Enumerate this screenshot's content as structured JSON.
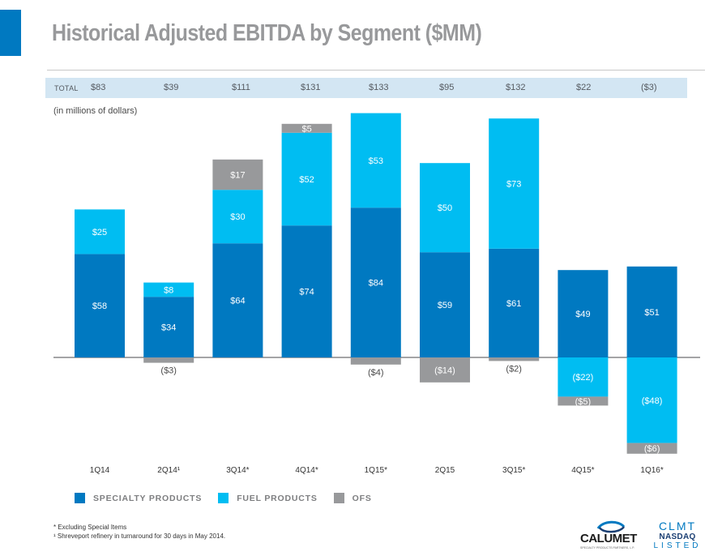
{
  "header": {
    "title": "Historical Adjusted EBITDA by Segment ($MM)"
  },
  "totals_row": {
    "label": "TOTAL",
    "values": [
      "$83",
      "$39",
      "$111",
      "$131",
      "$133",
      "$95",
      "$132",
      "$22",
      "($3)"
    ]
  },
  "units_note": "(in millions of dollars)",
  "colors": {
    "specialty": "#0079C1",
    "fuel": "#00BDF2",
    "ofs": "#98999B",
    "accent": "#0079C1",
    "total_band": "#D3E6F3"
  },
  "chart_data": {
    "type": "bar",
    "stacked": true,
    "title": "Historical Adjusted EBITDA by Segment ($MM)",
    "subtitle": "(in millions of dollars)",
    "xlabel": "",
    "ylabel": "",
    "categories": [
      "1Q14",
      "2Q14¹",
      "3Q14*",
      "4Q14*",
      "1Q15*",
      "2Q15",
      "3Q15*",
      "4Q15*",
      "1Q16*"
    ],
    "series": [
      {
        "name": "SPECIALTY PRODUCTS",
        "key": "specialty",
        "values": [
          58,
          34,
          64,
          74,
          84,
          59,
          61,
          49,
          51
        ],
        "labels": [
          "$58",
          "$34",
          "$64",
          "$74",
          "$84",
          "$59",
          "$61",
          "$49",
          "$51"
        ]
      },
      {
        "name": "FUEL PRODUCTS",
        "key": "fuel",
        "values": [
          25,
          8,
          30,
          52,
          53,
          50,
          73,
          -22,
          -48
        ],
        "labels": [
          "$25",
          "$8",
          "$30",
          "$52",
          "$53",
          "$50",
          "$73",
          "($22)",
          "($48)"
        ]
      },
      {
        "name": "OFS",
        "key": "ofs",
        "values": [
          0,
          -3,
          17,
          5,
          -4,
          -14,
          -2,
          -5,
          -6
        ],
        "labels": [
          "",
          "($3)",
          "$17",
          "$5",
          "($4)",
          "($14)",
          "($2)",
          "($5)",
          "($6)"
        ]
      }
    ],
    "totals": [
      83,
      39,
      111,
      131,
      133,
      95,
      132,
      22,
      -3
    ],
    "ylim": [
      -60,
      140
    ],
    "grid": false,
    "legend_position": "bottom-left"
  },
  "legend": [
    {
      "label": "SPECIALTY PRODUCTS",
      "key": "specialty"
    },
    {
      "label": "FUEL PRODUCTS",
      "key": "fuel"
    },
    {
      "label": "OFS",
      "key": "ofs"
    }
  ],
  "footnotes": [
    "* Excluding Special Items",
    "¹ Shreveport refinery in turnaround for 30 days in May 2014."
  ],
  "logos": {
    "company": "CALUMET",
    "company_sub": "SPECIALTY PRODUCTS PARTNERS, L.P.",
    "ticker": "CLMT",
    "exchange": "NASDAQ",
    "listed": "LISTED"
  }
}
